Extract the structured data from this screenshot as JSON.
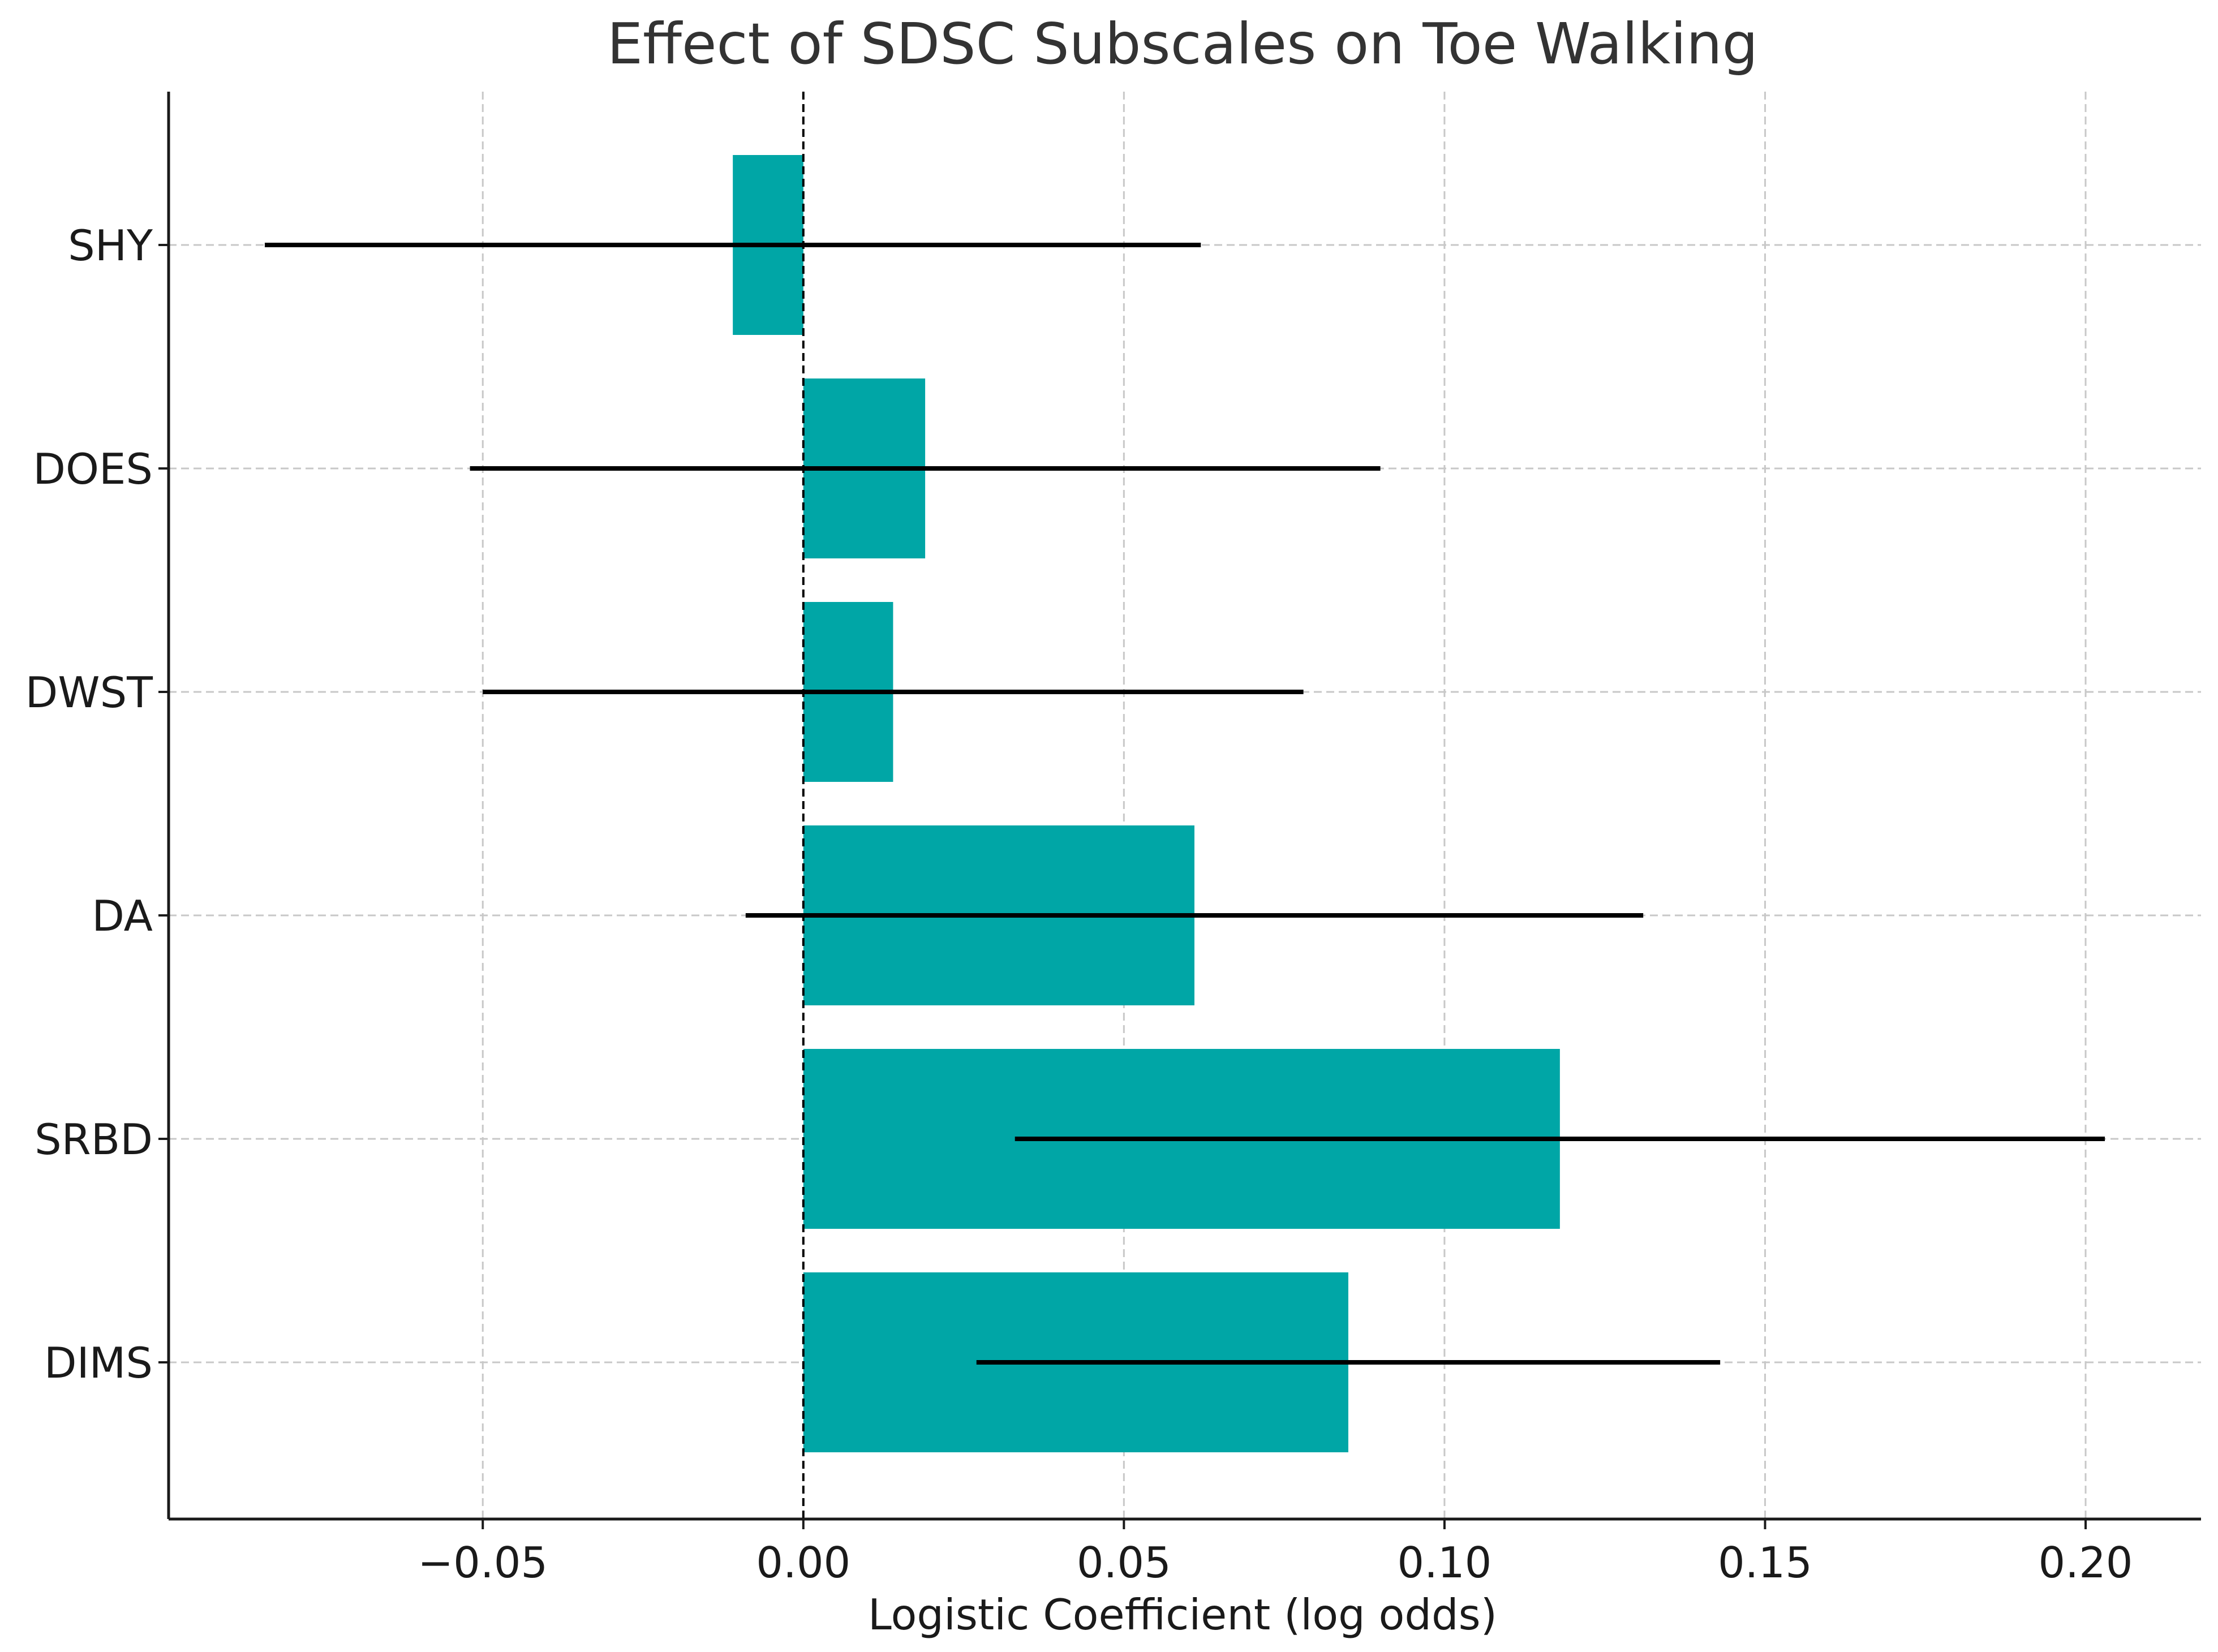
{
  "chart_data": {
    "type": "bar",
    "orientation": "horizontal",
    "title": "Effect of SDSC Subscales on Toe Walking",
    "xlabel": "Logistic Coefficient (log odds)",
    "ylabel": "",
    "categories": [
      "DIMS",
      "SRBD",
      "DA",
      "DWST",
      "DOES",
      "SHY"
    ],
    "values": [
      0.085,
      0.118,
      0.061,
      0.014,
      0.019,
      -0.011
    ],
    "ci_low": [
      0.027,
      0.033,
      -0.009,
      -0.05,
      -0.052,
      -0.084
    ],
    "ci_high": [
      0.143,
      0.203,
      0.131,
      0.078,
      0.09,
      0.062
    ],
    "xlim": [
      -0.099,
      0.218
    ],
    "xticks": [
      -0.05,
      0.0,
      0.05,
      0.1,
      0.15,
      0.2
    ],
    "xtick_labels": [
      "−0.05",
      "0.00",
      "0.05",
      "0.10",
      "0.15",
      "0.20"
    ],
    "reference_line": 0,
    "grid": true,
    "bar_color": "#00A6A6",
    "error_bar_color": "#000000"
  }
}
